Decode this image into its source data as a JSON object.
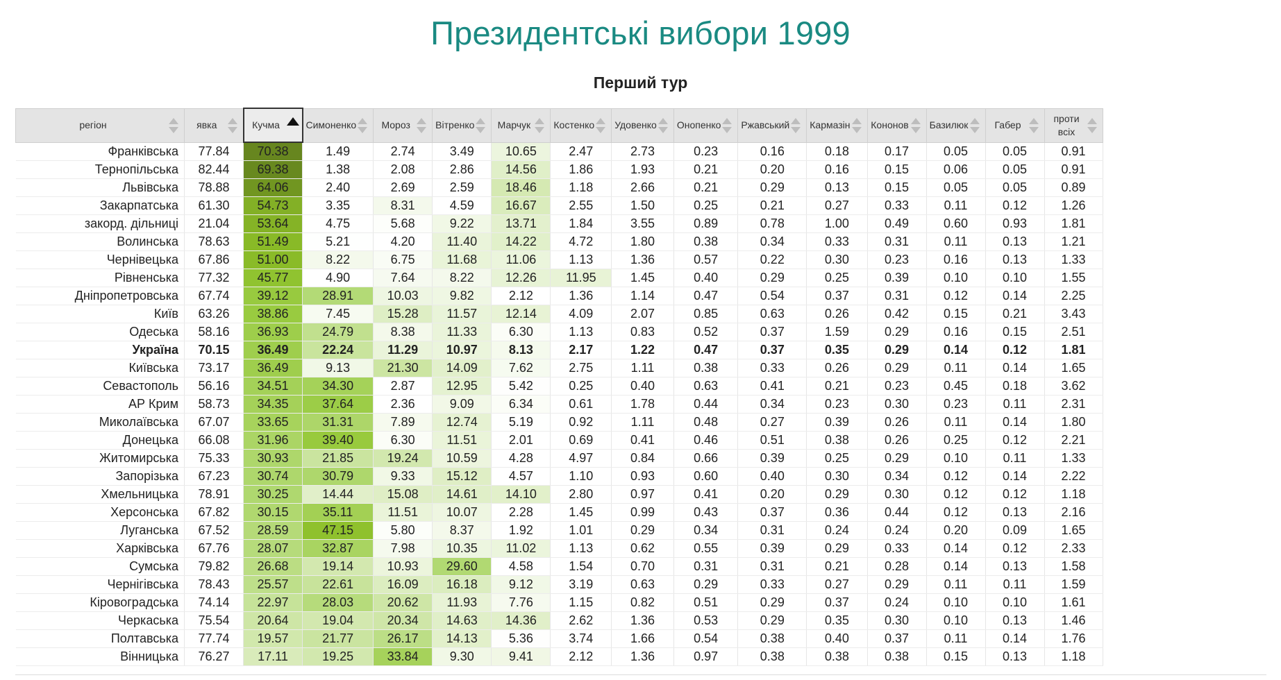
{
  "title": "Президентські вибори 1999",
  "subtitle": "Перший тур",
  "sorted_column": 2,
  "sort_direction": "descending",
  "heat_color": "#7ea827",
  "columns": [
    "регіон",
    "явка",
    "Кучма",
    "Симоненко",
    "Мороз",
    "Вітренко",
    "Марчук",
    "Костенко",
    "Удовенко",
    "Онопенко",
    "Ржавський",
    "Кармазін",
    "Кононов",
    "Базилюк",
    "Габер",
    "проти всіх"
  ],
  "rows": [
    [
      "Франківська",
      "77.84",
      "70.38",
      "1.49",
      "2.74",
      "3.49",
      "10.65",
      "2.47",
      "2.73",
      "0.23",
      "0.16",
      "0.18",
      "0.17",
      "0.05",
      "0.05",
      "0.91"
    ],
    [
      "Тернопільська",
      "82.44",
      "69.38",
      "1.38",
      "2.08",
      "2.86",
      "14.56",
      "1.86",
      "1.93",
      "0.21",
      "0.20",
      "0.16",
      "0.15",
      "0.06",
      "0.05",
      "0.91"
    ],
    [
      "Львівська",
      "78.88",
      "64.06",
      "2.40",
      "2.69",
      "2.59",
      "18.46",
      "1.18",
      "2.66",
      "0.21",
      "0.29",
      "0.13",
      "0.15",
      "0.05",
      "0.05",
      "0.89"
    ],
    [
      "Закарпатська",
      "61.30",
      "54.73",
      "3.35",
      "8.31",
      "4.59",
      "16.67",
      "2.55",
      "1.50",
      "0.25",
      "0.21",
      "0.27",
      "0.33",
      "0.11",
      "0.12",
      "1.26"
    ],
    [
      "закорд. дільниці",
      "21.04",
      "53.64",
      "4.75",
      "5.68",
      "9.22",
      "13.71",
      "1.84",
      "3.55",
      "0.89",
      "0.78",
      "1.00",
      "0.49",
      "0.60",
      "0.93",
      "1.81"
    ],
    [
      "Волинська",
      "78.63",
      "51.49",
      "5.21",
      "4.20",
      "11.40",
      "14.22",
      "4.72",
      "1.80",
      "0.38",
      "0.34",
      "0.33",
      "0.31",
      "0.11",
      "0.13",
      "1.21"
    ],
    [
      "Чернівецька",
      "67.86",
      "51.00",
      "8.22",
      "6.75",
      "11.68",
      "11.06",
      "1.13",
      "1.36",
      "0.57",
      "0.22",
      "0.30",
      "0.23",
      "0.16",
      "0.13",
      "1.33"
    ],
    [
      "Рівненська",
      "77.32",
      "45.77",
      "4.90",
      "7.64",
      "8.22",
      "12.26",
      "11.95",
      "1.45",
      "0.40",
      "0.29",
      "0.25",
      "0.39",
      "0.10",
      "0.10",
      "1.55"
    ],
    [
      "Дніпропетровська",
      "67.74",
      "39.12",
      "28.91",
      "10.03",
      "9.82",
      "2.12",
      "1.36",
      "1.14",
      "0.47",
      "0.54",
      "0.37",
      "0.31",
      "0.12",
      "0.14",
      "2.25"
    ],
    [
      "Київ",
      "63.26",
      "38.86",
      "7.45",
      "15.28",
      "11.57",
      "12.14",
      "4.09",
      "2.07",
      "0.85",
      "0.63",
      "0.26",
      "0.42",
      "0.15",
      "0.21",
      "3.43"
    ],
    [
      "Одеська",
      "58.16",
      "36.93",
      "24.79",
      "8.38",
      "11.33",
      "6.30",
      "1.13",
      "0.83",
      "0.52",
      "0.37",
      "1.59",
      "0.29",
      "0.16",
      "0.15",
      "2.51"
    ],
    [
      "Україна",
      "70.15",
      "36.49",
      "22.24",
      "11.29",
      "10.97",
      "8.13",
      "2.17",
      "1.22",
      "0.47",
      "0.37",
      "0.35",
      "0.29",
      "0.14",
      "0.12",
      "1.81"
    ],
    [
      "Київська",
      "73.17",
      "36.49",
      "9.13",
      "21.30",
      "14.09",
      "7.62",
      "2.75",
      "1.11",
      "0.38",
      "0.33",
      "0.26",
      "0.29",
      "0.11",
      "0.14",
      "1.65"
    ],
    [
      "Севастополь",
      "56.16",
      "34.51",
      "34.30",
      "2.87",
      "12.95",
      "5.42",
      "0.25",
      "0.40",
      "0.63",
      "0.41",
      "0.21",
      "0.23",
      "0.45",
      "0.18",
      "3.62"
    ],
    [
      "АР Крим",
      "58.73",
      "34.35",
      "37.64",
      "2.36",
      "9.09",
      "6.34",
      "0.61",
      "1.78",
      "0.44",
      "0.34",
      "0.23",
      "0.30",
      "0.23",
      "0.11",
      "2.31"
    ],
    [
      "Миколаївська",
      "67.07",
      "33.65",
      "31.31",
      "7.89",
      "12.74",
      "5.19",
      "0.92",
      "1.11",
      "0.48",
      "0.27",
      "0.39",
      "0.26",
      "0.11",
      "0.14",
      "1.80"
    ],
    [
      "Донецька",
      "66.08",
      "31.96",
      "39.40",
      "6.30",
      "11.51",
      "2.01",
      "0.69",
      "0.41",
      "0.46",
      "0.51",
      "0.38",
      "0.26",
      "0.25",
      "0.12",
      "2.21"
    ],
    [
      "Житомирська",
      "75.33",
      "30.93",
      "21.85",
      "19.24",
      "10.59",
      "4.28",
      "4.97",
      "0.84",
      "0.66",
      "0.39",
      "0.25",
      "0.29",
      "0.10",
      "0.11",
      "1.33"
    ],
    [
      "Запорізька",
      "67.23",
      "30.74",
      "30.79",
      "9.33",
      "15.12",
      "4.57",
      "1.10",
      "0.93",
      "0.60",
      "0.40",
      "0.30",
      "0.34",
      "0.12",
      "0.14",
      "2.22"
    ],
    [
      "Хмельницька",
      "78.91",
      "30.25",
      "14.44",
      "15.08",
      "14.61",
      "14.10",
      "2.80",
      "0.97",
      "0.41",
      "0.20",
      "0.29",
      "0.30",
      "0.12",
      "0.12",
      "1.18"
    ],
    [
      "Херсонська",
      "67.82",
      "30.15",
      "35.11",
      "11.51",
      "10.07",
      "2.28",
      "1.45",
      "0.99",
      "0.43",
      "0.37",
      "0.36",
      "0.44",
      "0.12",
      "0.13",
      "2.16"
    ],
    [
      "Луганська",
      "67.52",
      "28.59",
      "47.15",
      "5.80",
      "8.37",
      "1.92",
      "1.01",
      "0.29",
      "0.34",
      "0.31",
      "0.24",
      "0.24",
      "0.20",
      "0.09",
      "1.65"
    ],
    [
      "Харківська",
      "67.76",
      "28.07",
      "32.87",
      "7.98",
      "10.35",
      "11.02",
      "1.13",
      "0.62",
      "0.55",
      "0.39",
      "0.29",
      "0.33",
      "0.14",
      "0.12",
      "2.33"
    ],
    [
      "Сумська",
      "79.82",
      "26.68",
      "19.14",
      "10.93",
      "29.60",
      "4.58",
      "1.54",
      "0.70",
      "0.31",
      "0.31",
      "0.21",
      "0.28",
      "0.14",
      "0.13",
      "1.58"
    ],
    [
      "Чернігівська",
      "78.43",
      "25.57",
      "22.61",
      "16.09",
      "16.18",
      "9.12",
      "3.19",
      "0.63",
      "0.29",
      "0.33",
      "0.27",
      "0.29",
      "0.11",
      "0.11",
      "1.59"
    ],
    [
      "Кіровоградська",
      "74.14",
      "22.97",
      "28.03",
      "20.62",
      "11.93",
      "7.76",
      "1.15",
      "0.82",
      "0.51",
      "0.29",
      "0.37",
      "0.24",
      "0.10",
      "0.10",
      "1.61"
    ],
    [
      "Черкаська",
      "75.54",
      "20.64",
      "19.04",
      "20.34",
      "14.63",
      "14.36",
      "2.62",
      "1.36",
      "0.53",
      "0.29",
      "0.35",
      "0.30",
      "0.10",
      "0.13",
      "1.46"
    ],
    [
      "Полтавська",
      "77.74",
      "19.57",
      "21.77",
      "26.17",
      "14.13",
      "5.36",
      "3.74",
      "1.66",
      "0.54",
      "0.38",
      "0.40",
      "0.37",
      "0.11",
      "0.14",
      "1.76"
    ],
    [
      "Вінницька",
      "76.27",
      "17.11",
      "19.25",
      "33.84",
      "9.30",
      "9.41",
      "2.12",
      "1.36",
      "0.97",
      "0.38",
      "0.38",
      "0.38",
      "0.15",
      "0.13",
      "1.18"
    ]
  ],
  "total_row_index": 11
}
